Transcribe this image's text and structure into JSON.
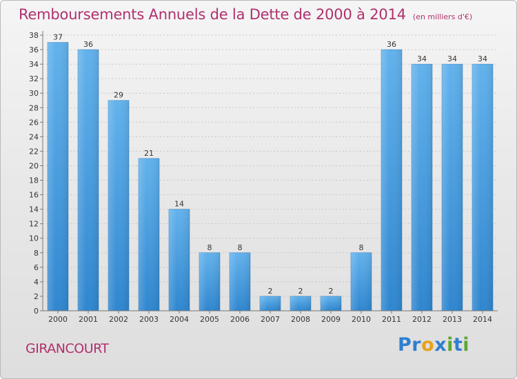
{
  "title": "Remboursements Annuels de la Dette de 2000 à 2014",
  "unit": "(en milliers d'€)",
  "town": "GIRANCOURT",
  "logo": {
    "text": "Proxiti",
    "letters": [
      {
        "ch": "P",
        "color": "#2f7fd0"
      },
      {
        "ch": "r",
        "color": "#2f7fd0"
      },
      {
        "ch": "o",
        "color": "#e8a21a"
      },
      {
        "ch": "x",
        "color": "#2f7fd0"
      },
      {
        "ch": "i",
        "color": "#5aa832"
      },
      {
        "ch": "t",
        "color": "#2f7fd0"
      },
      {
        "ch": "i",
        "color": "#5aa832"
      }
    ]
  },
  "colors": {
    "title": "#b0306e",
    "bar_light": "#62b2ec",
    "bar_dark": "#2f86cf"
  },
  "chart_data": {
    "type": "bar",
    "title": "Remboursements Annuels de la Dette de 2000 à 2014",
    "subtitle": "(en milliers d'€)",
    "xlabel": "",
    "ylabel": "",
    "categories": [
      "2000",
      "2001",
      "2002",
      "2003",
      "2004",
      "2005",
      "2006",
      "2007",
      "2008",
      "2009",
      "2010",
      "2011",
      "2012",
      "2013",
      "2014"
    ],
    "values": [
      37,
      36,
      29,
      21,
      14,
      8,
      8,
      2,
      2,
      2,
      8,
      36,
      34,
      34,
      34
    ],
    "ylim": [
      0,
      38
    ],
    "ytick_step": 2,
    "grid": true
  }
}
